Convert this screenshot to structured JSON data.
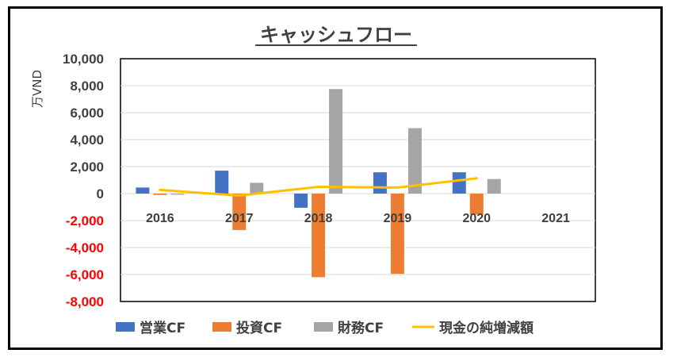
{
  "chart_data": {
    "type": "bar",
    "title": "キャッシュフロー",
    "ylabel": "万VND",
    "xlabel": "",
    "categories": [
      "2016",
      "2017",
      "2018",
      "2019",
      "2020",
      "2021"
    ],
    "ylim": [
      -8000,
      10000
    ],
    "yticks": [
      10000,
      8000,
      6000,
      4000,
      2000,
      0,
      -2000,
      -4000,
      -6000,
      -8000
    ],
    "ytick_labels": [
      "10,000",
      "8,000",
      "6,000",
      "4,000",
      "2,000",
      "0",
      "-2,000",
      "-4,000",
      "-6,000",
      "-8,000"
    ],
    "grid": true,
    "legend_position": "bottom",
    "series": [
      {
        "name": "営業CF",
        "kind": "bar",
        "color": "#4472C4",
        "values": [
          450,
          1700,
          -1050,
          1580,
          1580,
          null
        ]
      },
      {
        "name": "投資CF",
        "kind": "bar",
        "color": "#ED7D31",
        "values": [
          -100,
          -2700,
          -6200,
          -5950,
          -1550,
          null
        ]
      },
      {
        "name": "財務CF",
        "kind": "bar",
        "color": "#A5A5A5",
        "values": [
          -80,
          800,
          7750,
          4850,
          1080,
          null
        ]
      },
      {
        "name": "現金の純増減額",
        "kind": "line",
        "color": "#FFC000",
        "values": [
          270,
          -150,
          500,
          450,
          1130,
          null
        ]
      }
    ],
    "negative_tick_color": "#FF0000",
    "positive_tick_color": "#404040"
  }
}
